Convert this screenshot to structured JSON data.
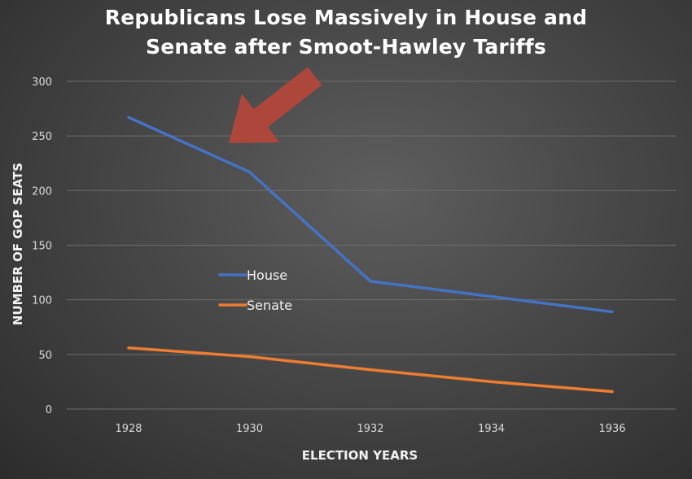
{
  "chart_data": {
    "type": "line",
    "title_lines": [
      "Republicans Lose Massively in House and",
      "Senate after Smoot-Hawley Tariffs"
    ],
    "xlabel": "ELECTION YEARS",
    "ylabel": "NUMBER OF GOP SEATS",
    "categories": [
      "1928",
      "1930",
      "1932",
      "1934",
      "1936"
    ],
    "ylim": [
      0,
      300
    ],
    "yticks": [
      "0",
      "50",
      "100",
      "150",
      "200",
      "250",
      "300"
    ],
    "series": [
      {
        "name": "House",
        "color": "#4472c4",
        "values": [
          267,
          217,
          117,
          103,
          89
        ]
      },
      {
        "name": "Senate",
        "color": "#ed7d31",
        "values": [
          56,
          48,
          36,
          25,
          16
        ]
      }
    ],
    "grid": true,
    "legend_position": "center-left",
    "annotation": {
      "type": "arrow",
      "color": "#b5453a",
      "points_to_category": "1930"
    }
  }
}
